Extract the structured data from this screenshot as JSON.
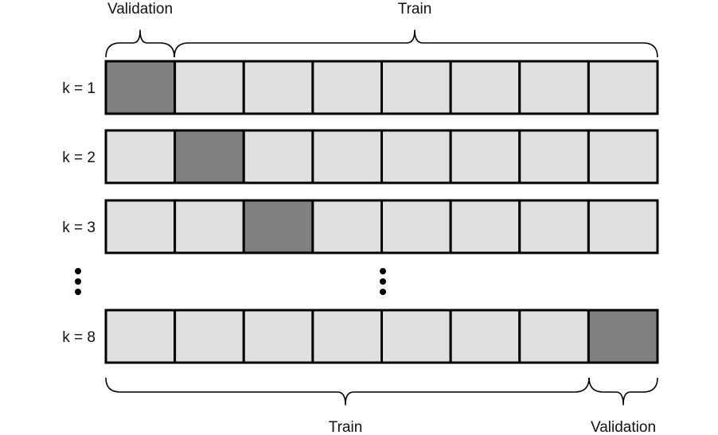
{
  "top_braces": {
    "validation_label": "Validation",
    "train_label": "Train"
  },
  "bottom_braces": {
    "train_label": "Train",
    "validation_label": "Validation"
  },
  "folds_per_row": 8,
  "rows": [
    {
      "label": "k = 1",
      "validation_fold": 1
    },
    {
      "label": "k = 2",
      "validation_fold": 2
    },
    {
      "label": "k = 3",
      "validation_fold": 3
    },
    {
      "label": "k = 8",
      "validation_fold": 8
    }
  ],
  "colors": {
    "train_fold": "#e0e0e0",
    "validation_fold": "#808080",
    "border": "#000000"
  }
}
